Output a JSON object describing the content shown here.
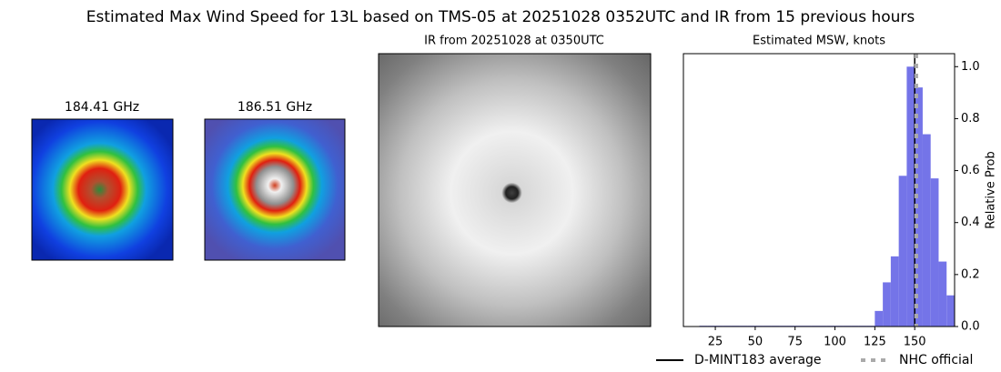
{
  "title": "Estimated Max Wind Speed for 13L based on TMS-05 at 20251028 0352UTC and IR from 15 previous hours",
  "panels": [
    {
      "title": "184.41 GHz"
    },
    {
      "title": "186.51 GHz"
    },
    {
      "title": "IR from 20251028 at 0350UTC"
    }
  ],
  "chart_data": {
    "type": "histogram",
    "title": "Estimated MSW, knots",
    "ylabel": "Relative Prob",
    "bins": [
      15,
      20,
      25,
      30,
      35,
      40,
      45,
      50,
      55,
      60,
      65,
      70,
      75,
      80,
      85,
      90,
      95,
      100,
      105,
      110,
      115,
      120,
      125,
      130,
      135,
      140,
      145,
      150,
      155,
      160,
      165,
      170,
      175
    ],
    "values": [
      0.003,
      0.003,
      0.003,
      0.003,
      0.003,
      0.003,
      0.003,
      0.003,
      0.003,
      0.003,
      0.003,
      0.003,
      0.003,
      0.003,
      0.003,
      0.003,
      0.003,
      0.003,
      0.003,
      0.003,
      0.003,
      0.003,
      0.06,
      0.17,
      0.27,
      0.58,
      1.0,
      0.92,
      0.74,
      0.57,
      0.25,
      0.12
    ],
    "color": "#7474e8",
    "xlim": [
      5,
      175
    ],
    "xticks": [
      25,
      50,
      75,
      100,
      125,
      150
    ],
    "ylim": [
      0,
      1.05
    ],
    "yticks": [
      {
        "value": 0,
        "label": "0.0"
      },
      0.2,
      0.4,
      0.6,
      0.8,
      {
        "value": 1,
        "label": "1.0"
      }
    ],
    "lines": [
      {
        "name": "D-MINT183 average",
        "value": 150,
        "color": "#000000",
        "style": "solid"
      },
      {
        "name": "NHC official",
        "value": 151,
        "color": "#aaaaaa",
        "style": "dotted"
      }
    ]
  }
}
